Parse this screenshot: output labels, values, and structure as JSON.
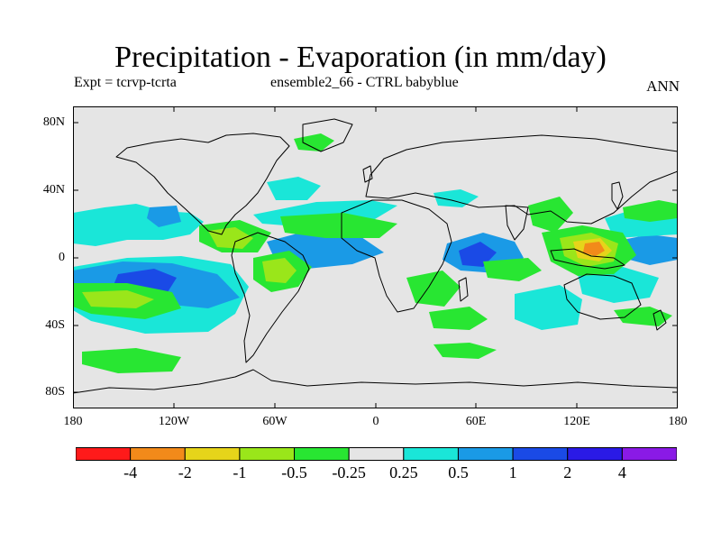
{
  "title": "Precipitation - Evaporation (in mm/day)",
  "subtitle_left": "Expt = tcrvp-tcrta",
  "subtitle_center": "ensemble2_66 - CTRL babyblue",
  "subtitle_right": "ANN",
  "y_ticks": [
    "80N",
    "40N",
    "0",
    "40S",
    "80S"
  ],
  "x_ticks": [
    "180",
    "120W",
    "60W",
    "0",
    "60E",
    "120E",
    "180"
  ],
  "colorbar": {
    "colors": [
      "#ff1a1a",
      "#f28a1a",
      "#e6d41a",
      "#9ae61a",
      "#28e632",
      "#e5e5e5",
      "#1ae6d8",
      "#1a9ae6",
      "#1a4ae6",
      "#2a1ae6",
      "#8a1ae6"
    ],
    "labels": [
      "-4",
      "-2",
      "-1",
      "-0.5",
      "-0.25",
      "0.25",
      "0.5",
      "1",
      "2",
      "4"
    ]
  },
  "colors": {
    "background": "#e5e5e5",
    "neg_weak": "#28e632",
    "neg_mid": "#9ae61a",
    "neg_strong": "#e6d41a",
    "neg_stronger": "#f28a1a",
    "pos_weak": "#1ae6d8",
    "pos_mid": "#1a9ae6",
    "pos_strong": "#1a4ae6"
  }
}
